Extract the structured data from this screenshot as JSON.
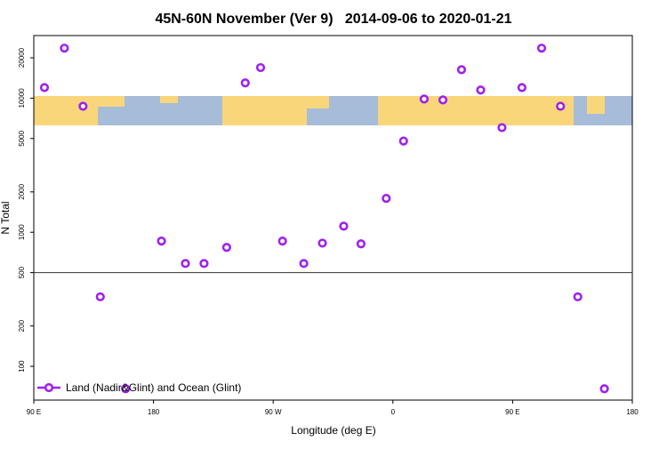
{
  "chart_data": {
    "type": "scatter",
    "title": "45N-60N November (Ver 9)   2014-09-06 to 2020-01-21",
    "xlabel": "Longitude (deg E)",
    "ylabel": "N Total",
    "log_y": true,
    "xlim": [
      90,
      540
    ],
    "xticks": [
      {
        "value": 90,
        "label": "90 E"
      },
      {
        "value": 180,
        "label": "180"
      },
      {
        "value": 270,
        "label": "90 W"
      },
      {
        "value": 360,
        "label": "0"
      },
      {
        "value": 450,
        "label": "90 E"
      },
      {
        "value": 540,
        "label": "180"
      }
    ],
    "ylim": [
      56,
      29300
    ],
    "yticks": [
      100,
      200,
      500,
      1000,
      2000,
      5000,
      10000,
      20000
    ],
    "hline": 500,
    "legend": "bottom-left",
    "series": [
      {
        "name": "Land (Nadir&Glint) and Ocean (Glint)",
        "color": "#a020f0",
        "x": [
          98,
          113,
          127,
          140,
          159,
          186,
          204,
          218,
          235,
          249,
          260.5,
          277,
          293,
          307,
          323,
          336,
          355,
          368,
          383.5,
          397.6,
          411.6,
          426,
          442,
          457,
          471.8,
          486,
          499,
          519
        ],
        "values": [
          12000,
          23600,
          8700,
          330,
          68,
          860,
          585,
          585,
          771,
          13000,
          16900,
          860,
          585,
          830,
          1110,
          820,
          1790,
          4790,
          9850,
          9700,
          16300,
          11500,
          6030,
          12000,
          23600,
          8700,
          330,
          68
        ]
      }
    ]
  }
}
